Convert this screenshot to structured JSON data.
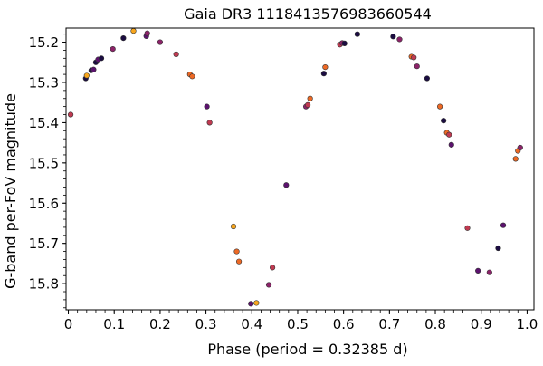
{
  "chart_data": {
    "type": "scatter",
    "title": "Gaia DR3 1118413576983660544",
    "xlabel": "Phase (period = 0.32385 d)",
    "ylabel": "G-band per-FoV magnitude",
    "xlim": [
      -0.005,
      1.015
    ],
    "ylim": [
      15.865,
      15.165
    ],
    "y_inverted": true,
    "grid": false,
    "legend": "none",
    "x_ticks": [
      0,
      0.1,
      0.2,
      0.3,
      0.4,
      0.5,
      0.6,
      0.7,
      0.8,
      0.9,
      1.0
    ],
    "x_tick_labels": [
      "0",
      "0.1",
      "0.2",
      "0.3",
      "0.4",
      "0.5",
      "0.6",
      "0.7",
      "0.8",
      "0.9",
      "1.0"
    ],
    "x_minor_step": 0.02,
    "y_ticks": [
      15.2,
      15.3,
      15.4,
      15.5,
      15.6,
      15.7,
      15.8
    ],
    "y_tick_labels": [
      "15.2",
      "15.3",
      "15.4",
      "15.5",
      "15.6",
      "15.7",
      "15.8"
    ],
    "y_minor_step": 0.02,
    "colors": {
      "axis": "#000000",
      "marker_edge": "#333333",
      "dark": "#1b0c41",
      "purple": "#5c126e",
      "magenta": "#8c2369",
      "red": "#c03a51",
      "orange": "#ed6925",
      "yellow": "#f8a61d"
    },
    "points": [
      {
        "x": 0.005,
        "y": 15.38,
        "color": "red"
      },
      {
        "x": 0.038,
        "y": 15.29,
        "color": "dark"
      },
      {
        "x": 0.04,
        "y": 15.283,
        "color": "yellow"
      },
      {
        "x": 0.05,
        "y": 15.27,
        "color": "dark"
      },
      {
        "x": 0.055,
        "y": 15.268,
        "color": "purple"
      },
      {
        "x": 0.06,
        "y": 15.25,
        "color": "dark"
      },
      {
        "x": 0.065,
        "y": 15.243,
        "color": "purple"
      },
      {
        "x": 0.072,
        "y": 15.24,
        "color": "dark"
      },
      {
        "x": 0.097,
        "y": 15.217,
        "color": "magenta"
      },
      {
        "x": 0.12,
        "y": 15.19,
        "color": "dark"
      },
      {
        "x": 0.142,
        "y": 15.172,
        "color": "yellow"
      },
      {
        "x": 0.17,
        "y": 15.185,
        "color": "purple"
      },
      {
        "x": 0.172,
        "y": 15.178,
        "color": "magenta"
      },
      {
        "x": 0.2,
        "y": 15.2,
        "color": "magenta"
      },
      {
        "x": 0.235,
        "y": 15.23,
        "color": "red"
      },
      {
        "x": 0.265,
        "y": 15.28,
        "color": "orange"
      },
      {
        "x": 0.27,
        "y": 15.285,
        "color": "orange"
      },
      {
        "x": 0.302,
        "y": 15.36,
        "color": "purple"
      },
      {
        "x": 0.308,
        "y": 15.4,
        "color": "red"
      },
      {
        "x": 0.36,
        "y": 15.658,
        "color": "yellow"
      },
      {
        "x": 0.367,
        "y": 15.72,
        "color": "orange"
      },
      {
        "x": 0.372,
        "y": 15.745,
        "color": "orange"
      },
      {
        "x": 0.398,
        "y": 15.85,
        "color": "purple"
      },
      {
        "x": 0.41,
        "y": 15.848,
        "color": "yellow"
      },
      {
        "x": 0.437,
        "y": 15.803,
        "color": "magenta"
      },
      {
        "x": 0.445,
        "y": 15.76,
        "color": "red"
      },
      {
        "x": 0.475,
        "y": 15.555,
        "color": "purple"
      },
      {
        "x": 0.518,
        "y": 15.36,
        "color": "magenta"
      },
      {
        "x": 0.522,
        "y": 15.356,
        "color": "red"
      },
      {
        "x": 0.527,
        "y": 15.34,
        "color": "orange"
      },
      {
        "x": 0.557,
        "y": 15.278,
        "color": "dark"
      },
      {
        "x": 0.56,
        "y": 15.262,
        "color": "orange"
      },
      {
        "x": 0.592,
        "y": 15.206,
        "color": "red"
      },
      {
        "x": 0.597,
        "y": 15.202,
        "color": "magenta"
      },
      {
        "x": 0.602,
        "y": 15.203,
        "color": "dark"
      },
      {
        "x": 0.63,
        "y": 15.18,
        "color": "dark"
      },
      {
        "x": 0.708,
        "y": 15.186,
        "color": "dark"
      },
      {
        "x": 0.722,
        "y": 15.193,
        "color": "magenta"
      },
      {
        "x": 0.748,
        "y": 15.236,
        "color": "orange"
      },
      {
        "x": 0.753,
        "y": 15.238,
        "color": "red"
      },
      {
        "x": 0.76,
        "y": 15.26,
        "color": "magenta"
      },
      {
        "x": 0.782,
        "y": 15.29,
        "color": "dark"
      },
      {
        "x": 0.81,
        "y": 15.36,
        "color": "orange"
      },
      {
        "x": 0.818,
        "y": 15.395,
        "color": "dark"
      },
      {
        "x": 0.825,
        "y": 15.425,
        "color": "orange"
      },
      {
        "x": 0.83,
        "y": 15.43,
        "color": "red"
      },
      {
        "x": 0.835,
        "y": 15.455,
        "color": "purple"
      },
      {
        "x": 0.87,
        "y": 15.662,
        "color": "red"
      },
      {
        "x": 0.893,
        "y": 15.768,
        "color": "purple"
      },
      {
        "x": 0.918,
        "y": 15.772,
        "color": "magenta"
      },
      {
        "x": 0.937,
        "y": 15.712,
        "color": "dark"
      },
      {
        "x": 0.948,
        "y": 15.655,
        "color": "purple"
      },
      {
        "x": 0.975,
        "y": 15.49,
        "color": "orange"
      },
      {
        "x": 0.98,
        "y": 15.47,
        "color": "orange"
      },
      {
        "x": 0.985,
        "y": 15.462,
        "color": "magenta"
      }
    ]
  }
}
